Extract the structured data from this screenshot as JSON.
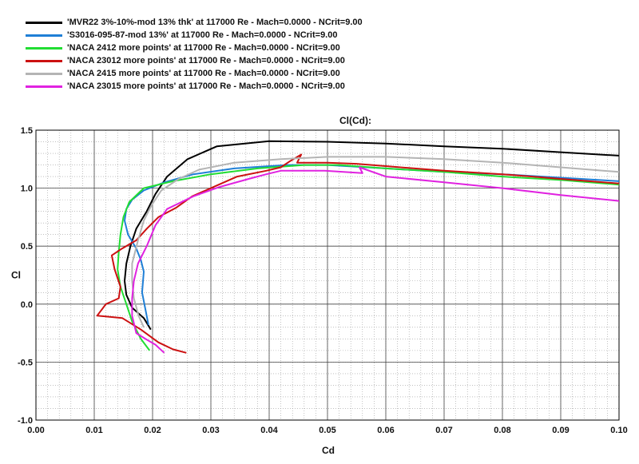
{
  "chart_data": {
    "type": "line",
    "title": "Cl(Cd):",
    "xlabel": "Cd",
    "ylabel": "Cl",
    "xlim": [
      0.0,
      0.1
    ],
    "ylim": [
      -1.0,
      1.5
    ],
    "x_ticks": [
      "0.00",
      "0.01",
      "0.02",
      "0.03",
      "0.04",
      "0.05",
      "0.06",
      "0.07",
      "0.08",
      "0.09",
      "0.10"
    ],
    "y_ticks": [
      "1.5",
      "1.0",
      "0.5",
      "0.0",
      "-0.5",
      "-1.0"
    ],
    "grid": true,
    "legend_position": "top-left",
    "series": [
      {
        "name": "'MVR22 3%-10%-mod 13% thk' at 117000 Re - Mach=0.0000 - NCrit=9.00",
        "color": "#000000",
        "points": [
          [
            0.0197,
            -0.22
          ],
          [
            0.0185,
            -0.12
          ],
          [
            0.0165,
            -0.03
          ],
          [
            0.0155,
            0.08
          ],
          [
            0.0152,
            0.2
          ],
          [
            0.0155,
            0.35
          ],
          [
            0.0162,
            0.5
          ],
          [
            0.0172,
            0.65
          ],
          [
            0.019,
            0.8
          ],
          [
            0.0205,
            0.95
          ],
          [
            0.0225,
            1.1
          ],
          [
            0.026,
            1.25
          ],
          [
            0.031,
            1.36
          ],
          [
            0.04,
            1.405
          ],
          [
            0.05,
            1.4
          ],
          [
            0.06,
            1.385
          ],
          [
            0.07,
            1.36
          ],
          [
            0.08,
            1.34
          ],
          [
            0.09,
            1.31
          ],
          [
            0.1,
            1.28
          ]
        ]
      },
      {
        "name": "'S3016-095-87-mod 13%' at 117000 Re - Mach=0.0000 - NCrit=9.00",
        "color": "#1f7fd6",
        "points": [
          [
            0.0193,
            -0.18
          ],
          [
            0.0188,
            -0.05
          ],
          [
            0.0182,
            0.1
          ],
          [
            0.0185,
            0.28
          ],
          [
            0.018,
            0.38
          ],
          [
            0.0172,
            0.48
          ],
          [
            0.0158,
            0.6
          ],
          [
            0.0152,
            0.72
          ],
          [
            0.0155,
            0.82
          ],
          [
            0.0165,
            0.9
          ],
          [
            0.0185,
            0.98
          ],
          [
            0.022,
            1.05
          ],
          [
            0.027,
            1.12
          ],
          [
            0.034,
            1.17
          ],
          [
            0.043,
            1.2
          ],
          [
            0.05,
            1.2
          ],
          [
            0.06,
            1.17
          ],
          [
            0.07,
            1.14
          ],
          [
            0.08,
            1.12
          ],
          [
            0.09,
            1.09
          ],
          [
            0.1,
            1.06
          ]
        ]
      },
      {
        "name": "'NACA 2412 more points' at 117000 Re - Mach=0.0000 - NCrit=9.00",
        "color": "#22dd33",
        "points": [
          [
            0.0195,
            -0.4
          ],
          [
            0.018,
            -0.3
          ],
          [
            0.0165,
            -0.15
          ],
          [
            0.0155,
            0.0
          ],
          [
            0.0145,
            0.15
          ],
          [
            0.014,
            0.3
          ],
          [
            0.0142,
            0.45
          ],
          [
            0.0145,
            0.6
          ],
          [
            0.015,
            0.75
          ],
          [
            0.016,
            0.88
          ],
          [
            0.0185,
            1.0
          ],
          [
            0.0235,
            1.06
          ],
          [
            0.03,
            1.12
          ],
          [
            0.038,
            1.17
          ],
          [
            0.046,
            1.2
          ],
          [
            0.052,
            1.2
          ],
          [
            0.06,
            1.17
          ],
          [
            0.07,
            1.14
          ],
          [
            0.08,
            1.1
          ],
          [
            0.09,
            1.07
          ],
          [
            0.1,
            1.03
          ]
        ]
      },
      {
        "name": "'NACA 23012 more points' at 117000 Re - Mach=0.0000 - NCrit=9.00",
        "color": "#cc1111",
        "points": [
          [
            0.0258,
            -0.42
          ],
          [
            0.0235,
            -0.39
          ],
          [
            0.021,
            -0.33
          ],
          [
            0.018,
            -0.22
          ],
          [
            0.0148,
            -0.12
          ],
          [
            0.0105,
            -0.1
          ],
          [
            0.012,
            0.0
          ],
          [
            0.0142,
            0.05
          ],
          [
            0.0145,
            0.15
          ],
          [
            0.0135,
            0.3
          ],
          [
            0.013,
            0.42
          ],
          [
            0.0148,
            0.48
          ],
          [
            0.0172,
            0.55
          ],
          [
            0.019,
            0.65
          ],
          [
            0.021,
            0.75
          ],
          [
            0.024,
            0.83
          ],
          [
            0.0268,
            0.93
          ],
          [
            0.03,
            1.0
          ],
          [
            0.0345,
            1.1
          ],
          [
            0.0395,
            1.15
          ],
          [
            0.042,
            1.18
          ],
          [
            0.0435,
            1.23
          ],
          [
            0.0455,
            1.29
          ],
          [
            0.0448,
            1.22
          ],
          [
            0.05,
            1.22
          ],
          [
            0.055,
            1.21
          ],
          [
            0.06,
            1.19
          ],
          [
            0.07,
            1.15
          ],
          [
            0.08,
            1.12
          ],
          [
            0.09,
            1.08
          ],
          [
            0.1,
            1.04
          ]
        ]
      },
      {
        "name": "'NACA 2415 more points' at 117000 Re - Mach=0.0000 - NCrit=9.00",
        "color": "#b4b4b4",
        "points": [
          [
            0.0185,
            -0.2
          ],
          [
            0.0176,
            -0.1
          ],
          [
            0.0168,
            0.05
          ],
          [
            0.0165,
            0.2
          ],
          [
            0.0165,
            0.35
          ],
          [
            0.0175,
            0.55
          ],
          [
            0.0185,
            0.72
          ],
          [
            0.0198,
            0.85
          ],
          [
            0.0215,
            0.98
          ],
          [
            0.0245,
            1.08
          ],
          [
            0.028,
            1.16
          ],
          [
            0.034,
            1.22
          ],
          [
            0.042,
            1.25
          ],
          [
            0.05,
            1.27
          ],
          [
            0.06,
            1.27
          ],
          [
            0.07,
            1.25
          ],
          [
            0.08,
            1.22
          ],
          [
            0.09,
            1.18
          ],
          [
            0.1,
            1.14
          ]
        ]
      },
      {
        "name": "'NACA 23015 more points' at 117000 Re - Mach=0.0000 - NCrit=9.00",
        "color": "#e022e0",
        "points": [
          [
            0.022,
            -0.42
          ],
          [
            0.0205,
            -0.35
          ],
          [
            0.0188,
            -0.3
          ],
          [
            0.0172,
            -0.25
          ],
          [
            0.0165,
            -0.1
          ],
          [
            0.0165,
            0.05
          ],
          [
            0.0168,
            0.2
          ],
          [
            0.0175,
            0.35
          ],
          [
            0.019,
            0.5
          ],
          [
            0.0205,
            0.68
          ],
          [
            0.0225,
            0.82
          ],
          [
            0.027,
            0.93
          ],
          [
            0.0315,
            1.01
          ],
          [
            0.0365,
            1.08
          ],
          [
            0.0395,
            1.12
          ],
          [
            0.042,
            1.15
          ],
          [
            0.0495,
            1.15
          ],
          [
            0.056,
            1.13
          ],
          [
            0.0555,
            1.18
          ],
          [
            0.06,
            1.1
          ],
          [
            0.07,
            1.05
          ],
          [
            0.08,
            1.0
          ],
          [
            0.09,
            0.94
          ],
          [
            0.1,
            0.89
          ]
        ]
      }
    ]
  }
}
